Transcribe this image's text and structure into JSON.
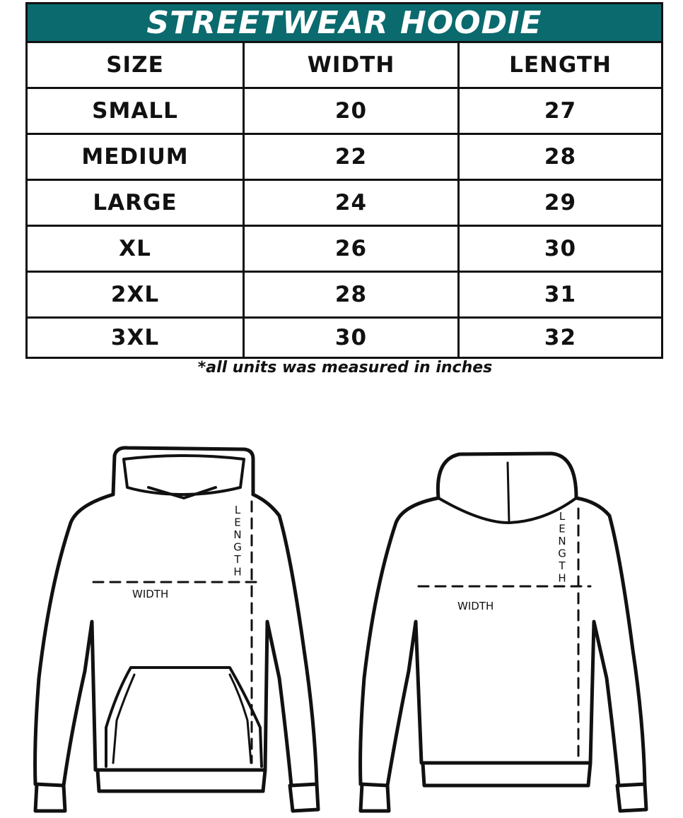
{
  "title": "STREETWEAR HOODIE",
  "columns": [
    "SIZE",
    "WIDTH",
    "LENGTH"
  ],
  "rows": [
    [
      "SMALL",
      "20",
      "27"
    ],
    [
      "MEDIUM",
      "22",
      "28"
    ],
    [
      "LARGE",
      "24",
      "29"
    ],
    [
      "XL",
      "26",
      "30"
    ],
    [
      "2XL",
      "28",
      "31"
    ],
    [
      "3XL",
      "30",
      "32"
    ]
  ],
  "note": "*all units was measured in inches",
  "diagram": {
    "front": {
      "width_label": "WIDTH",
      "length_label": "LENGTH"
    },
    "back": {
      "width_label": "WIDTH",
      "length_label": "LENGTH"
    }
  },
  "colors": {
    "header": "#0b6a6e"
  }
}
